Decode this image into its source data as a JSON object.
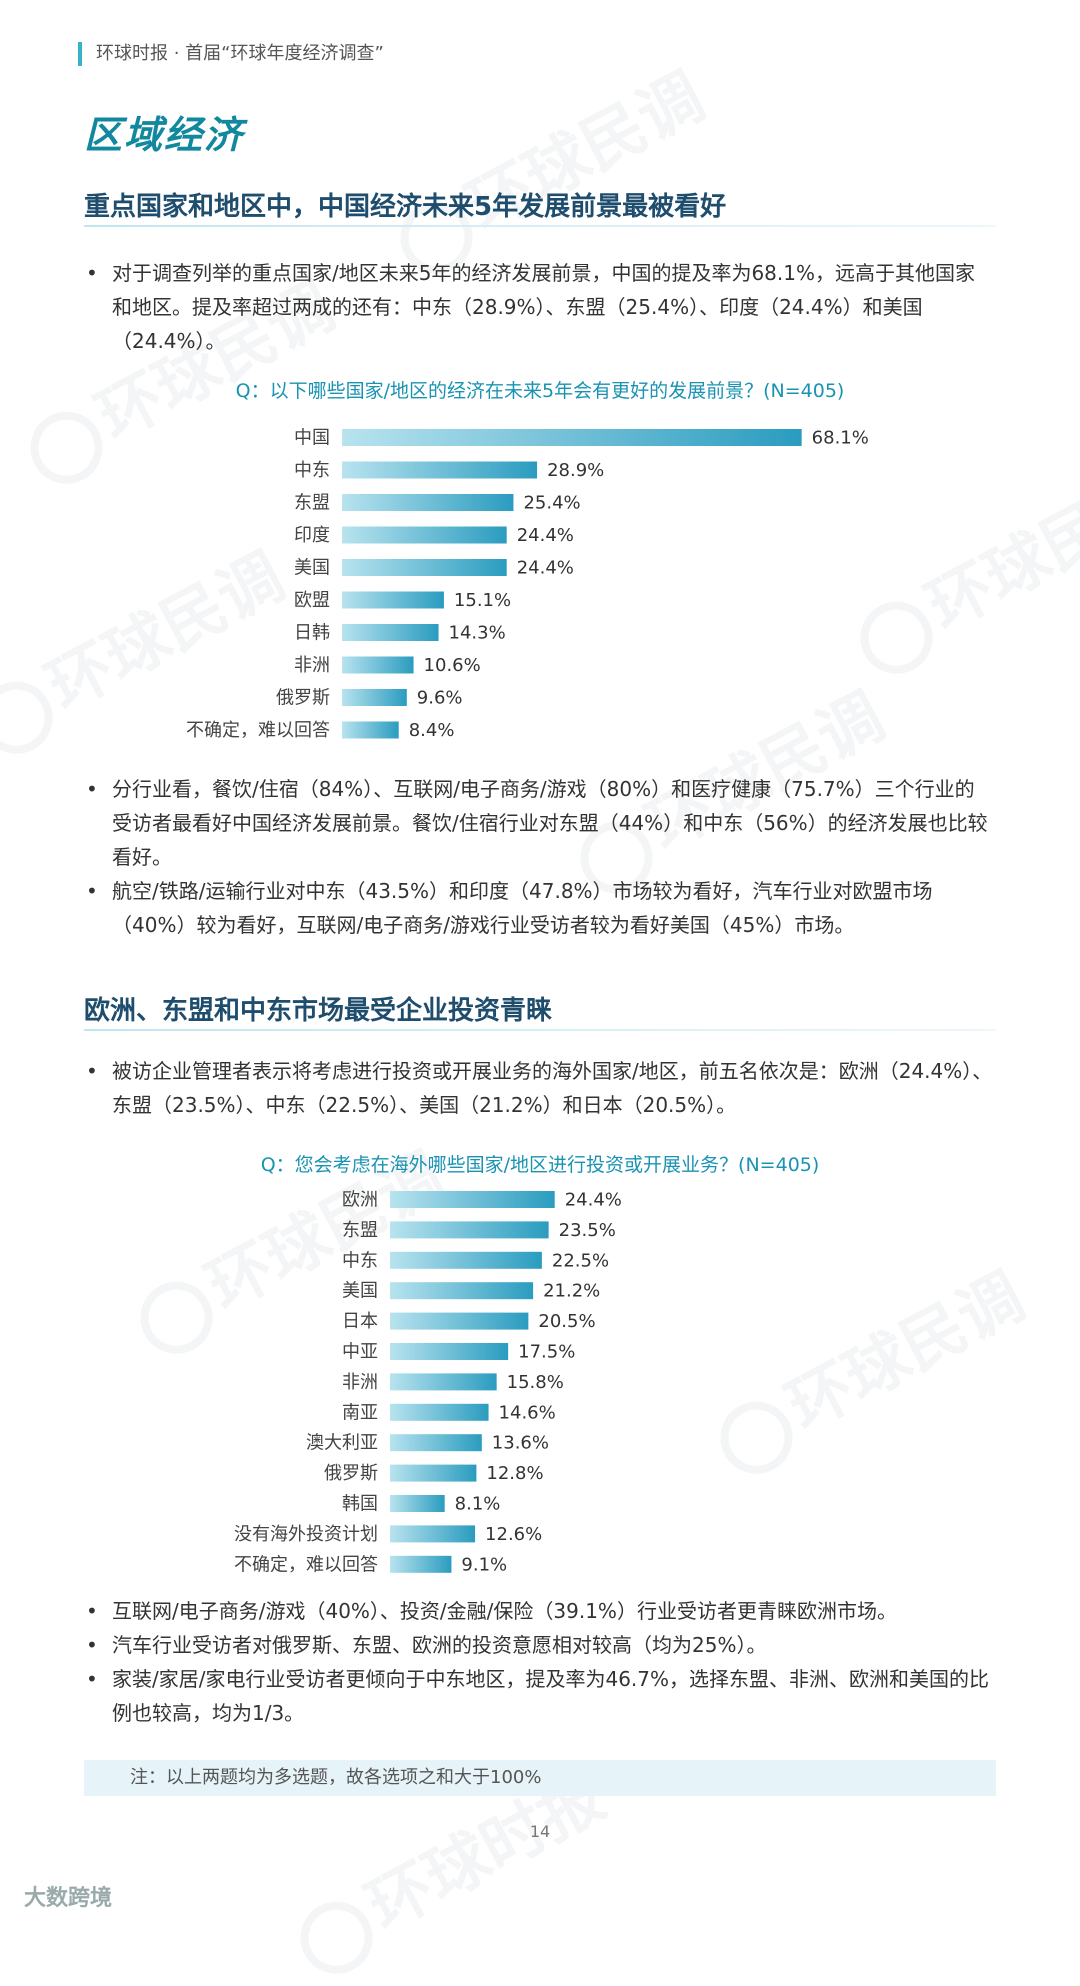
{
  "header": {
    "text": "环球时报 · 首届“环球年度经济调查”"
  },
  "section_title": "区域经济",
  "watermark": {
    "text": "环球民调",
    "alt_text": "环球时报"
  },
  "section1": {
    "heading": "重点国家和地区中，中国经济未来5年发展前景最被看好",
    "bullet_intro": "对于调查列举的重点国家/地区未来5年的经济发展前景，中国的提及率为68.1%，远高于其他国家和地区。提及率超过两成的还有：中东（28.9%）、东盟（25.4%）、印度（24.4%）和美国（24.4%）。",
    "bullets_after": [
      "分行业看，餐饮/住宿（84%）、互联网/电子商务/游戏（80%）和医疗健康（75.7%）三个行业的受访者最看好中国经济发展前景。餐饮/住宿行业对东盟（44%）和中东（56%）的经济发展也比较看好。",
      "航空/铁路/运输行业对中东（43.5%）和印度（47.8%）市场较为看好，汽车行业对欧盟市场（40%）较为看好，互联网/电子商务/游戏行业受访者较为看好美国（45%）市场。"
    ]
  },
  "section2": {
    "heading": "欧洲、东盟和中东市场最受企业投资青睐",
    "bullet_intro": "被访企业管理者表示将考虑进行投资或开展业务的海外国家/地区，前五名依次是：欧洲（24.4%）、东盟（23.5%）、中东（22.5%）、美国（21.2%）和日本（20.5%）。",
    "bullets_after": [
      "互联网/电子商务/游戏（40%）、投资/金融/保险（39.1%）行业受访者更青睐欧洲市场。",
      "汽车行业受访者对俄罗斯、东盟、欧洲的投资意愿相对较高（均为25%）。",
      "家装/家居/家电行业受访者更倾向于中东地区，提及率为46.7%，选择东盟、非洲、欧洲和美国的比例也较高，均为1/3。"
    ]
  },
  "chart_data": [
    {
      "type": "bar",
      "orientation": "horizontal",
      "title": "Q：以下哪些国家/地区的经济在未来5年会有更好的发展前景？(N=405)",
      "categories": [
        "中国",
        "中东",
        "东盟",
        "印度",
        "美国",
        "欧盟",
        "日韩",
        "非洲",
        "俄罗斯",
        "不确定，难以回答"
      ],
      "values": [
        68.1,
        28.9,
        25.4,
        24.4,
        24.4,
        15.1,
        14.3,
        10.6,
        9.6,
        8.4
      ],
      "value_suffix": "%",
      "bar_colors": [
        "#b8e3ef",
        "#2a9cbf"
      ]
    },
    {
      "type": "bar",
      "orientation": "horizontal",
      "title": "Q：您会考虑在海外哪些国家/地区进行投资或开展业务？(N=405)",
      "categories": [
        "欧洲",
        "东盟",
        "中东",
        "美国",
        "日本",
        "中亚",
        "非洲",
        "南亚",
        "澳大利亚",
        "俄罗斯",
        "韩国",
        "没有海外投资计划",
        "不确定，难以回答"
      ],
      "values": [
        24.4,
        23.5,
        22.5,
        21.2,
        20.5,
        17.5,
        15.8,
        14.6,
        13.6,
        12.8,
        8.1,
        12.6,
        9.1
      ],
      "value_suffix": "%",
      "bar_colors": [
        "#b8e3ef",
        "#2a9cbf"
      ]
    }
  ],
  "note": "注：以上两题均为多选题，故各选项之和大于100%",
  "page_number": "14",
  "footer_brand": "大数跨境"
}
